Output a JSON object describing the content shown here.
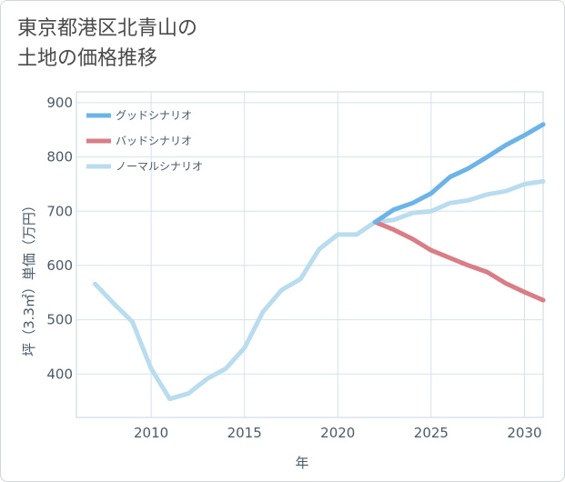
{
  "title": {
    "line1": "東京都港区北青山の",
    "line2": "土地の価格推移"
  },
  "chart_data": {
    "type": "line",
    "xlabel": "年",
    "ylabel": "坪（3.3㎡）単価（万円）",
    "xlim": [
      2006,
      2031
    ],
    "ylim": [
      320,
      920
    ],
    "xticks": [
      2010,
      2015,
      2020,
      2025,
      2030
    ],
    "yticks": [
      400,
      500,
      600,
      700,
      800,
      900
    ],
    "grid": true,
    "legend_position": "top-left",
    "series": [
      {
        "name": "グッドシナリオ",
        "color": "#6cb4e8",
        "x": [
          2022,
          2023,
          2024,
          2025,
          2026,
          2027,
          2028,
          2029,
          2030,
          2031
        ],
        "y": [
          680,
          703,
          715,
          733,
          763,
          779,
          800,
          822,
          840,
          860
        ]
      },
      {
        "name": "バッドシナリオ",
        "color": "#d97d87",
        "x": [
          2022,
          2023,
          2024,
          2025,
          2026,
          2027,
          2028,
          2029,
          2030,
          2031
        ],
        "y": [
          680,
          666,
          649,
          628,
          614,
          600,
          588,
          567,
          551,
          536
        ]
      },
      {
        "name": "ノーマルシナリオ",
        "color": "#b9dcee",
        "x": [
          2007,
          2008,
          2009,
          2010,
          2011,
          2012,
          2013,
          2014,
          2015,
          2016,
          2017,
          2018,
          2019,
          2020,
          2021,
          2022,
          2023,
          2024,
          2025,
          2026,
          2027,
          2028,
          2029,
          2030,
          2031
        ],
        "y": [
          566,
          530,
          496,
          410,
          354,
          364,
          391,
          410,
          448,
          515,
          555,
          575,
          630,
          657,
          657,
          680,
          684,
          697,
          700,
          715,
          720,
          731,
          737,
          750,
          755
        ]
      }
    ]
  }
}
